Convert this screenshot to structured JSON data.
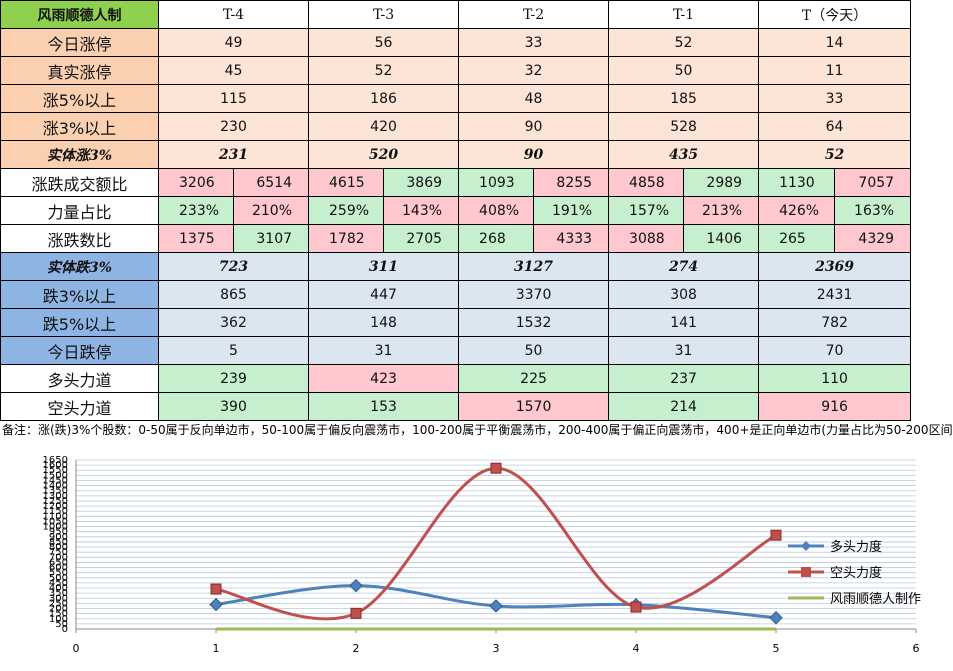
{
  "table": {
    "title": "风雨顺德人制",
    "headers": [
      "T-4",
      "T-3",
      "T-2",
      "T-1",
      "T（今天）"
    ],
    "rows_simple_top": [
      {
        "label": "今日涨停",
        "values": [
          "49",
          "56",
          "33",
          "52",
          "14"
        ]
      },
      {
        "label": "真实涨停",
        "values": [
          "45",
          "52",
          "32",
          "50",
          "11"
        ]
      },
      {
        "label": "涨5%以上",
        "values": [
          "115",
          "186",
          "48",
          "185",
          "33"
        ]
      },
      {
        "label": "涨3%以上",
        "values": [
          "230",
          "420",
          "90",
          "528",
          "64"
        ]
      }
    ],
    "row_up_body": {
      "label": "实体涨3%",
      "values": [
        "231",
        "520",
        "90",
        "435",
        "52"
      ]
    },
    "rows_split": [
      {
        "label": "涨跌成交额比",
        "values": [
          "3206",
          "6514",
          "4615",
          "3869",
          "1093",
          "8255",
          "4858",
          "2989",
          "1130",
          "7057"
        ],
        "colors": [
          "pink",
          "pink",
          "pink",
          "green",
          "green",
          "pink",
          "pink",
          "green",
          "green",
          "pink"
        ]
      },
      {
        "label": "力量占比",
        "values": [
          "233%",
          "210%",
          "259%",
          "143%",
          "408%",
          "191%",
          "157%",
          "213%",
          "426%",
          "163%"
        ],
        "colors": [
          "green",
          "pink",
          "green",
          "pink",
          "pink",
          "green",
          "green",
          "pink",
          "pink",
          "green"
        ]
      },
      {
        "label": "涨跌数比",
        "values": [
          "1375",
          "3107",
          "1782",
          "2705",
          "268",
          "4333",
          "3088",
          "1406",
          "265",
          "4329"
        ],
        "colors": [
          "pink",
          "green",
          "pink",
          "green",
          "green",
          "pink",
          "pink",
          "green",
          "green",
          "pink"
        ]
      }
    ],
    "row_down_body": {
      "label": "实体跌3%",
      "values": [
        "723",
        "311",
        "3127",
        "274",
        "2369"
      ]
    },
    "rows_simple_bottom": [
      {
        "label": "跌3%以上",
        "values": [
          "865",
          "447",
          "3370",
          "308",
          "2431"
        ]
      },
      {
        "label": "跌5%以上",
        "values": [
          "362",
          "148",
          "1532",
          "141",
          "782"
        ]
      },
      {
        "label": "今日跌停",
        "values": [
          "5",
          "31",
          "50",
          "31",
          "70"
        ]
      }
    ],
    "row_bull": {
      "label": "多头力道",
      "values": [
        "239",
        "423",
        "225",
        "237",
        "110"
      ],
      "colors": [
        "green",
        "pink",
        "green",
        "green",
        "green"
      ]
    },
    "row_bear": {
      "label": "空头力道",
      "values": [
        "390",
        "153",
        "1570",
        "214",
        "916"
      ],
      "colors": [
        "green",
        "green",
        "pink",
        "green",
        "pink"
      ]
    }
  },
  "note": "备注：涨(跌)3%个股数：0-50属于反向单边市，50-100属于偏反向震荡市，100-200属于平衡震荡市，200-400属于偏正向震荡市，400+是正向单边市(力量占比为50-200区间",
  "chart_data": {
    "type": "line",
    "x": [
      1,
      2,
      3,
      4,
      5
    ],
    "xlim": [
      0,
      6
    ],
    "ylim": [
      0,
      1650
    ],
    "xticks": [
      "0",
      "1",
      "2",
      "3",
      "4",
      "5",
      "6"
    ],
    "yticks": [
      "0",
      "50",
      "100",
      "150",
      "200",
      "250",
      "300",
      "350",
      "400",
      "450",
      "500",
      "550",
      "600",
      "650",
      "700",
      "750",
      "800",
      "850",
      "900",
      "950",
      "1000",
      "1050",
      "1100",
      "1150",
      "1200",
      "1250",
      "1300",
      "1350",
      "1400",
      "1450",
      "1500",
      "1550",
      "1600",
      "1650"
    ],
    "series": [
      {
        "name": "多头力度",
        "values": [
          239,
          423,
          225,
          237,
          110
        ],
        "color": "#4f81bd",
        "marker": "diamond"
      },
      {
        "name": "空头力度",
        "values": [
          390,
          153,
          1570,
          214,
          916
        ],
        "color": "#c0504d",
        "marker": "square"
      },
      {
        "name": "风雨顺德人制作",
        "values": [
          0,
          0,
          0,
          0,
          0
        ],
        "color": "#9bbb59",
        "marker": "none"
      }
    ],
    "legend": "right",
    "grid": true
  }
}
